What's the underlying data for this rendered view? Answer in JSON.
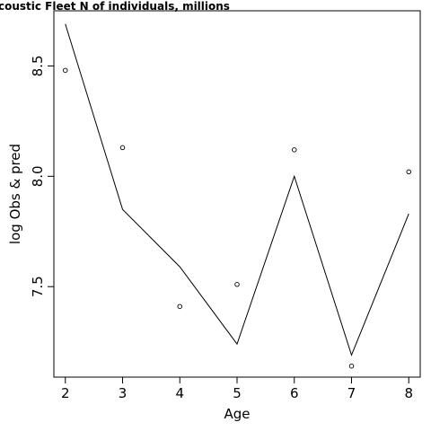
{
  "chart_data": {
    "type": "line",
    "title": "coustic Fleet   N of individuals, millions",
    "xlabel": "Age",
    "ylabel": "log Obs & pred",
    "x": [
      2,
      3,
      4,
      5,
      6,
      7,
      8
    ],
    "series": [
      {
        "values": [
          8.48,
          8.13,
          7.41,
          7.51,
          8.12,
          7.14,
          8.02
        ]
      },
      {
        "values": [
          8.69,
          7.85,
          7.59,
          7.24,
          8.0,
          7.19,
          7.83
        ]
      }
    ],
    "xticks": [
      "2",
      "3",
      "4",
      "5",
      "6",
      "7",
      "8"
    ],
    "yticks": [
      "7.5",
      "8.0",
      "8.5"
    ],
    "xlim": [
      1.8,
      8.2
    ],
    "ylim": [
      7.09,
      8.75
    ],
    "grid": false
  }
}
